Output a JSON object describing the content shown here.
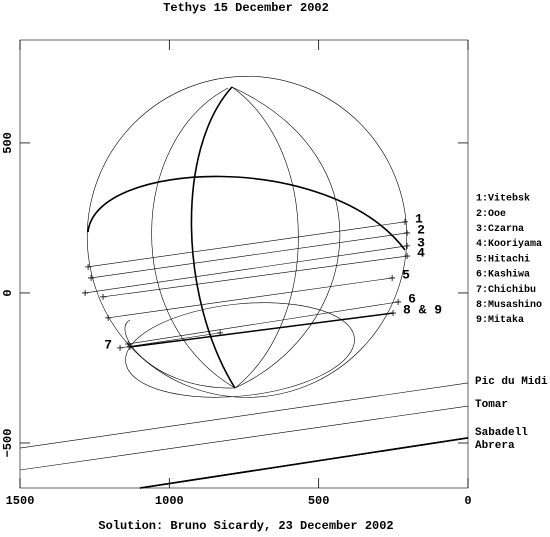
{
  "chart_data": {
    "type": "line",
    "title": "Tethys 15 December 2002",
    "caption": "Solution: Bruno Sicardy, 23 December 2002",
    "xlim": [
      1500,
      0
    ],
    "ylim": [
      -650,
      843
    ],
    "xticks": [
      1500,
      1000,
      500,
      0
    ],
    "yticks": [
      {
        "value": -500,
        "label": "−500"
      },
      0,
      500
    ],
    "limb": {
      "x": 740,
      "y": 187,
      "r": 535
    },
    "legend": [
      "1:Vitebsk",
      "2:Ooe",
      "3:Czarna",
      "4:Kooriyama",
      "5:Hitachi",
      "6:Kashiwa",
      "7:Chichibu",
      "8:Musashino",
      "9:Mitaka"
    ],
    "series": [
      {
        "name": "1",
        "x": [
          1272,
          211
        ],
        "y": [
          87,
          237
        ]
      },
      {
        "name": "2",
        "x": [
          1262,
          204
        ],
        "y": [
          50,
          200
        ]
      },
      {
        "name": "3",
        "x": [
          1282,
          204
        ],
        "y": [
          0,
          157
        ]
      },
      {
        "name": "4",
        "x": [
          1222,
          204
        ],
        "y": [
          -13,
          123
        ]
      },
      {
        "name": "5",
        "x": [
          1205,
          254
        ],
        "y": [
          -83,
          50
        ]
      },
      {
        "name": "6",
        "x": [
          1138,
          234
        ],
        "y": [
          -170,
          -30
        ]
      },
      {
        "name": "7",
        "x": [
          1165,
          830
        ],
        "y": [
          -183,
          -133
        ],
        "label_at": "start"
      },
      {
        "name": "8 & 9",
        "x": [
          1132,
          251
        ],
        "y": [
          -180,
          -67
        ],
        "bold": true
      },
      {
        "name": "Pic du Midi",
        "x": [
          1500,
          0
        ],
        "y": [
          -517,
          -300
        ],
        "station": true
      },
      {
        "name": "Tomar",
        "x": [
          1500,
          0
        ],
        "y": [
          -590,
          -377
        ],
        "station": true
      },
      {
        "name": "Sabadell",
        "x": [
          1098,
          0
        ],
        "y": [
          -650,
          -483
        ],
        "station": true,
        "bold": true
      },
      {
        "name": "Abrera",
        "x": [
          1098,
          0
        ],
        "y": [
          -650,
          -483
        ],
        "station": true,
        "bold": true
      }
    ]
  }
}
